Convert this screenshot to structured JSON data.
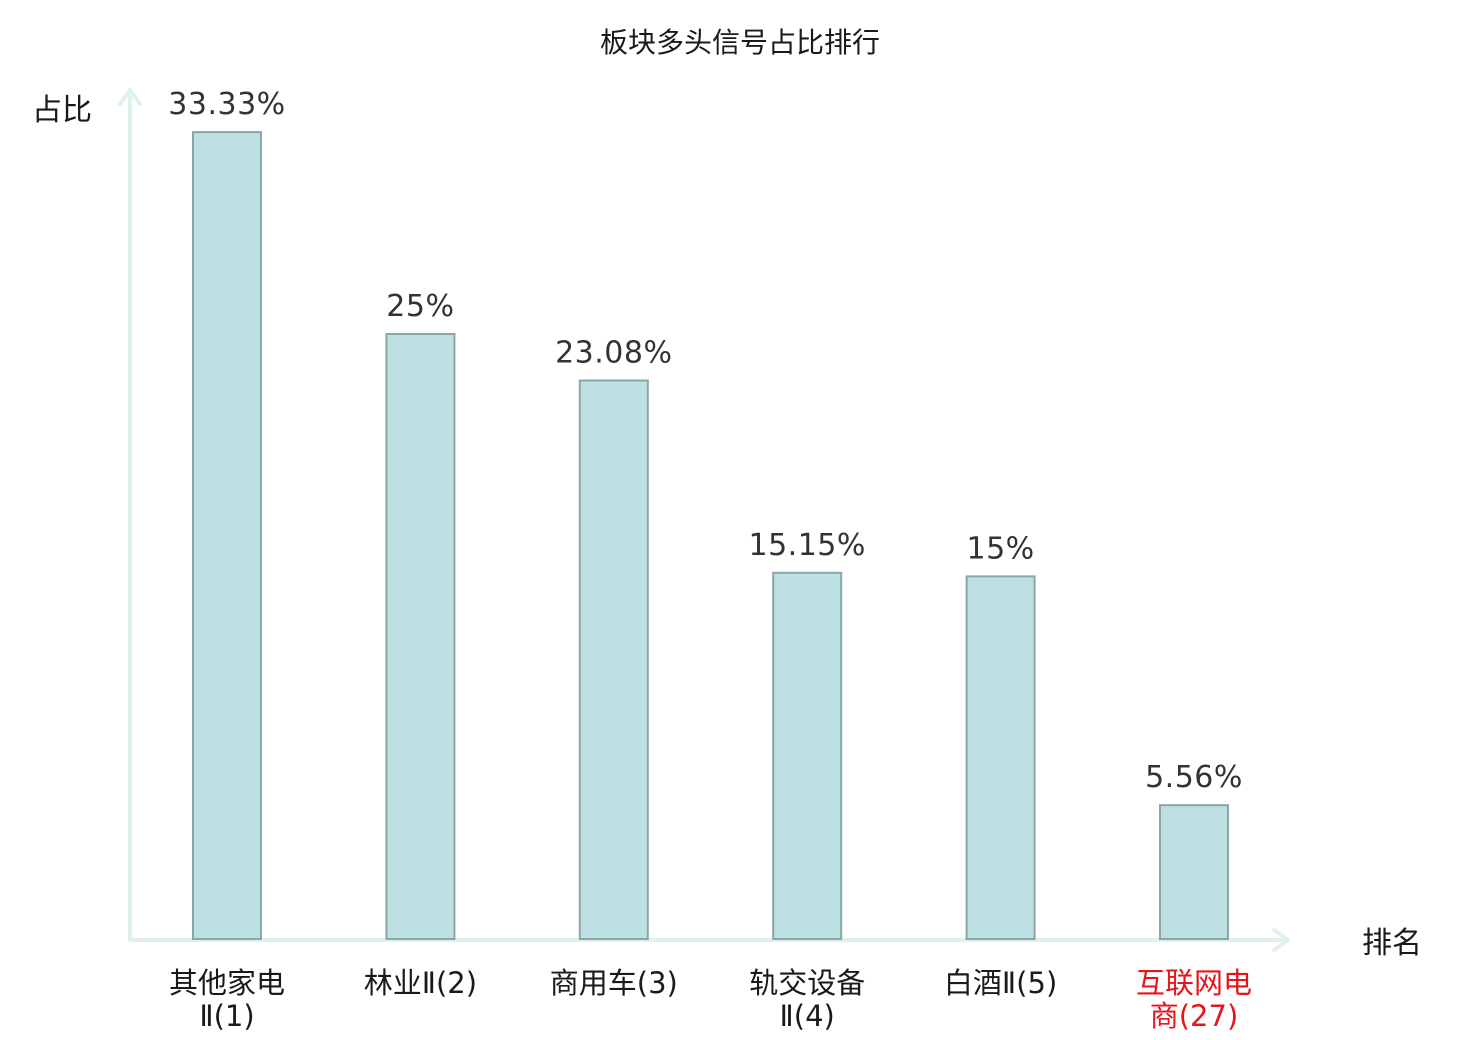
{
  "chart_data": {
    "type": "bar",
    "title": "板块多头信号占比排行",
    "xlabel": "排名",
    "ylabel": "占比",
    "categories": [
      [
        "其他家电",
        "Ⅱ(1)"
      ],
      [
        "林业Ⅱ(2)"
      ],
      [
        "商用车(3)"
      ],
      [
        "轨交设备",
        "Ⅱ(4)"
      ],
      [
        "白酒Ⅱ(5)"
      ],
      [
        "互联网电",
        "商(27)"
      ]
    ],
    "values": [
      33.33,
      25,
      23.08,
      15.15,
      15,
      5.56
    ],
    "value_labels": [
      "33.33%",
      "25%",
      "23.08%",
      "15.15%",
      "15%",
      "5.56%"
    ],
    "highlight_index": 5,
    "colors": {
      "bar_fill": "#bde0e2",
      "bar_stroke": "#8aa6a8",
      "axis": "#dff1ef",
      "highlight_text": "#e8141c"
    },
    "grid": false
  }
}
